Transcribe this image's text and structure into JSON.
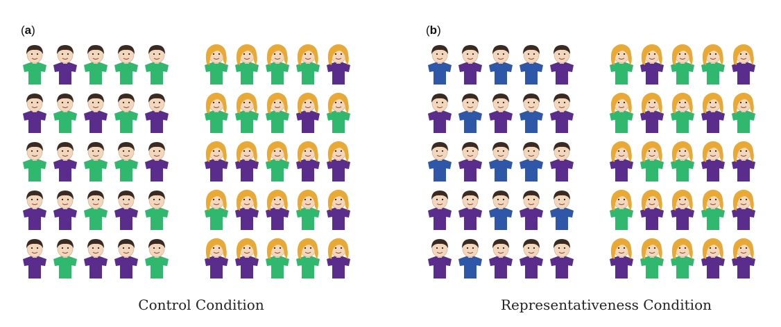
{
  "colors": {
    "green": "#2fb86e",
    "purple": "#5a2d8c",
    "blue": "#2f57a8",
    "skin": "#f2d7bd",
    "boy_hair": "#3a2a22",
    "girl_hair": "#e8a935"
  },
  "panels": [
    {
      "id": "a",
      "label": "a",
      "caption": "Control Condition",
      "boys": [
        [
          "green",
          "purple",
          "green",
          "green",
          "green"
        ],
        [
          "purple",
          "green",
          "purple",
          "green",
          "purple"
        ],
        [
          "green",
          "purple",
          "green",
          "green",
          "purple"
        ],
        [
          "purple",
          "purple",
          "green",
          "purple",
          "green"
        ],
        [
          "purple",
          "green",
          "purple",
          "purple",
          "green"
        ]
      ],
      "girls": [
        [
          "green",
          "green",
          "green",
          "green",
          "purple"
        ],
        [
          "green",
          "green",
          "green",
          "purple",
          "green"
        ],
        [
          "purple",
          "purple",
          "green",
          "purple",
          "purple"
        ],
        [
          "green",
          "purple",
          "purple",
          "green",
          "purple"
        ],
        [
          "purple",
          "purple",
          "green",
          "green",
          "purple"
        ]
      ]
    },
    {
      "id": "b",
      "label": "b",
      "caption": "Representativeness Condition",
      "boys": [
        [
          "blue",
          "purple",
          "blue",
          "blue",
          "purple"
        ],
        [
          "purple",
          "blue",
          "purple",
          "blue",
          "purple"
        ],
        [
          "blue",
          "purple",
          "blue",
          "blue",
          "purple"
        ],
        [
          "purple",
          "purple",
          "blue",
          "purple",
          "blue"
        ],
        [
          "purple",
          "blue",
          "purple",
          "purple",
          "purple"
        ]
      ],
      "girls": [
        [
          "green",
          "purple",
          "green",
          "green",
          "purple"
        ],
        [
          "green",
          "purple",
          "green",
          "purple",
          "green"
        ],
        [
          "purple",
          "green",
          "green",
          "purple",
          "purple"
        ],
        [
          "green",
          "purple",
          "purple",
          "green",
          "purple"
        ],
        [
          "purple",
          "green",
          "green",
          "purple",
          "purple"
        ]
      ]
    }
  ]
}
